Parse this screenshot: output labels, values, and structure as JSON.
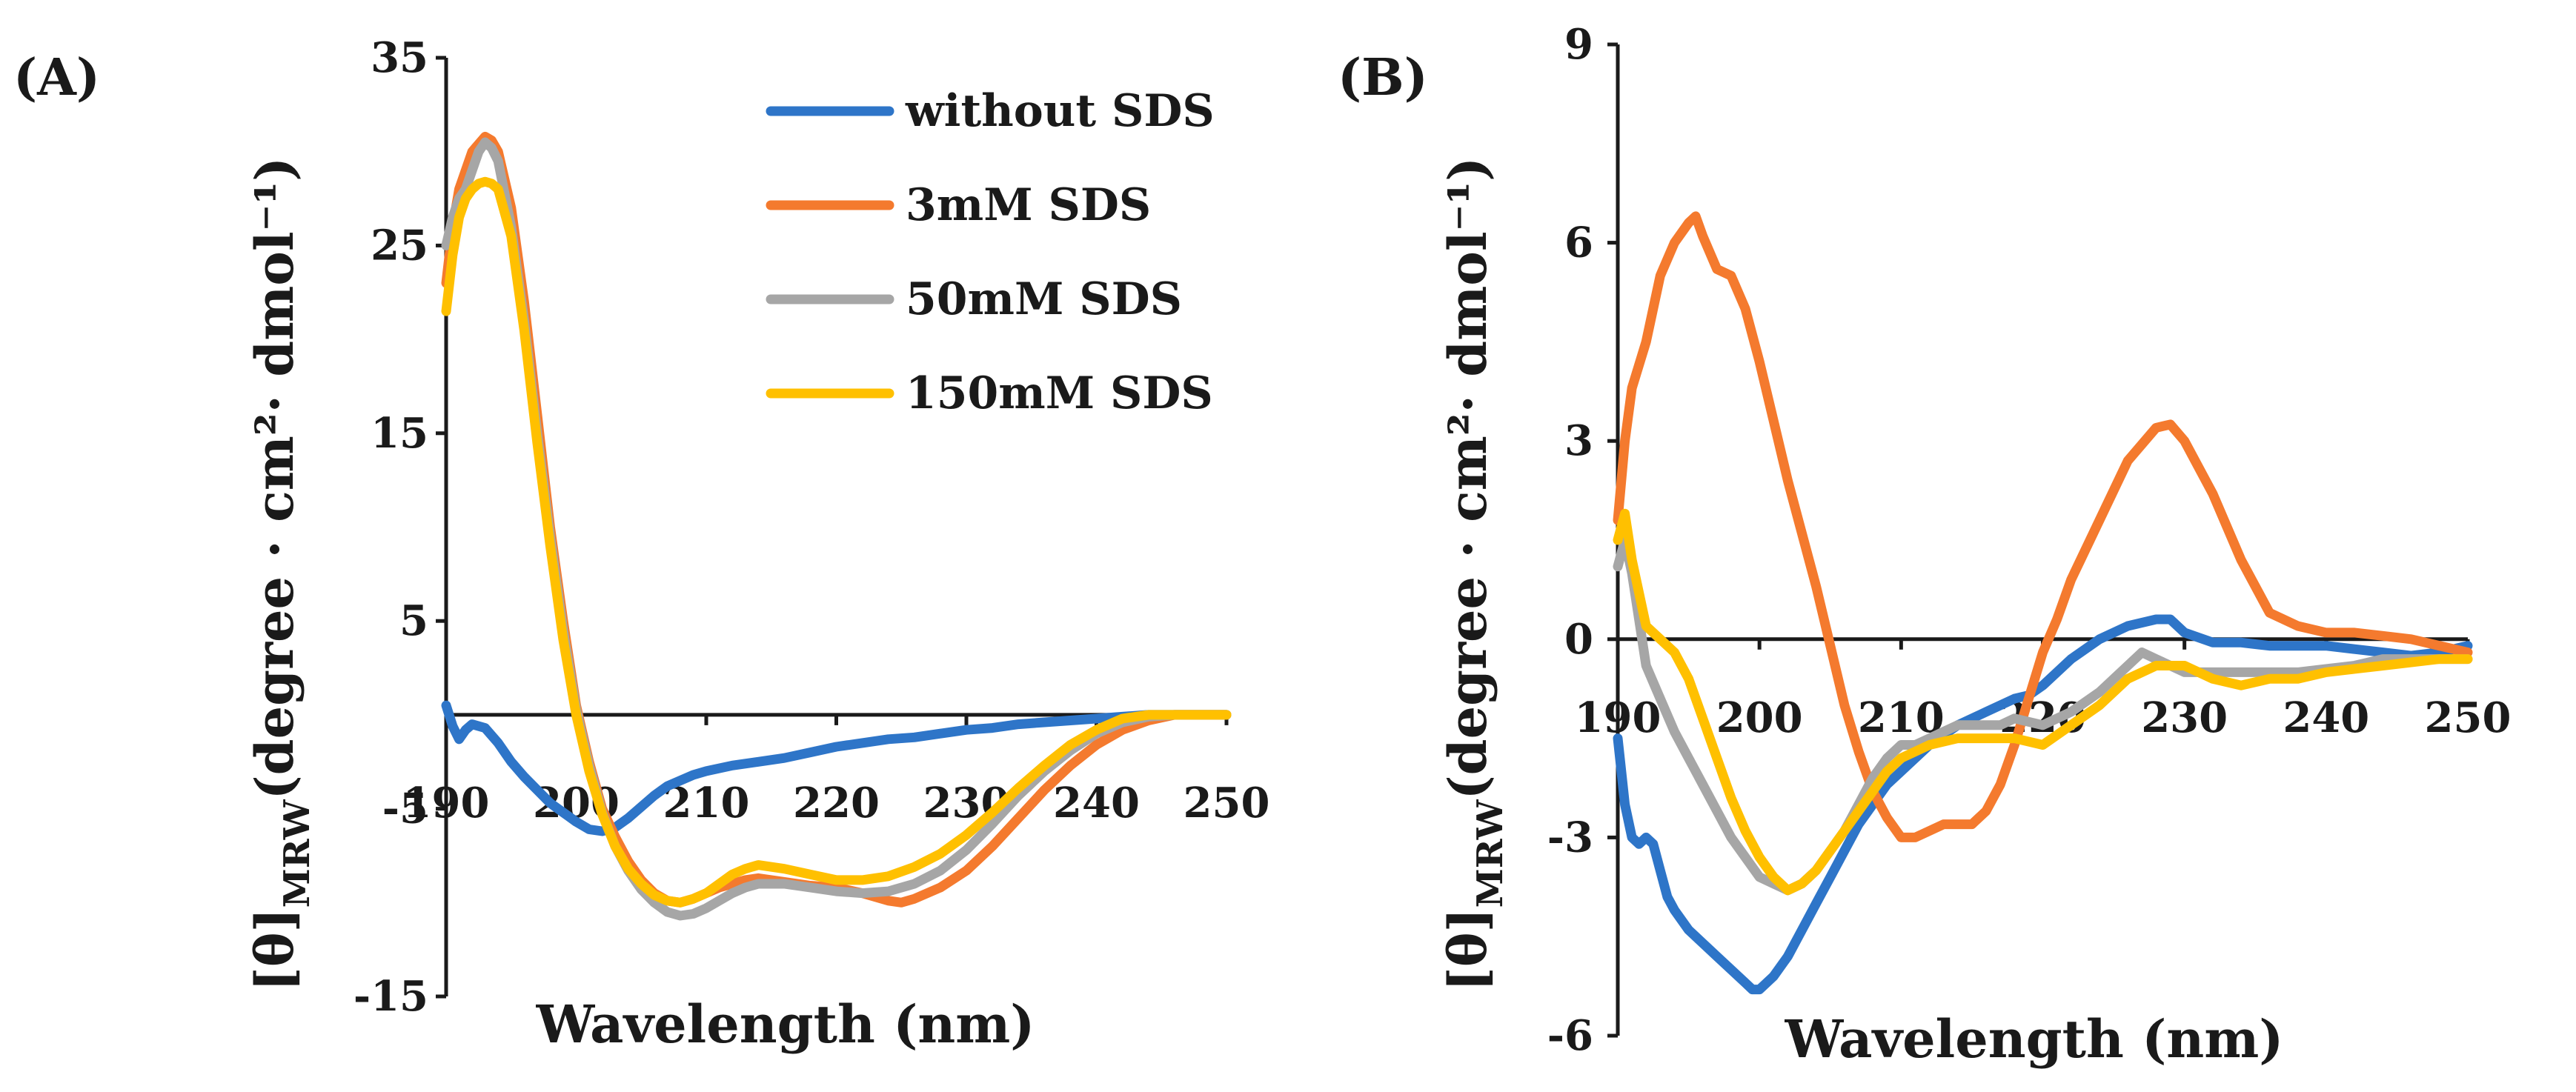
{
  "figure": {
    "colors": {
      "without": "#2E75C8",
      "sds3": "#F47A2E",
      "sds50": "#A6A6A6",
      "sds150": "#FFC000"
    }
  },
  "chart_data": [
    {
      "type": "line",
      "panel_label": "(A)",
      "title": "",
      "xlabel": "Wavelength (nm)",
      "ylabel_symbol": "[θ]",
      "ylabel_sub": "MRW",
      "ylabel_units": "(degree · cm²· dmol⁻¹)",
      "xlim": [
        190,
        250
      ],
      "ylim": [
        -15,
        35
      ],
      "x_ticks": [
        "190",
        "200",
        "210",
        "220",
        "230",
        "240",
        "250"
      ],
      "y_ticks": [
        "35",
        "25",
        "15",
        "5",
        "-5",
        "-15"
      ],
      "x_tick_values": [
        190,
        200,
        210,
        220,
        230,
        240,
        250
      ],
      "y_tick_values": [
        35,
        25,
        15,
        5,
        -5,
        -15
      ],
      "grid": false,
      "legend_position": "top-right",
      "legend": [
        "without SDS",
        "3mM SDS",
        "50mM SDS",
        "150mM SDS"
      ],
      "series": [
        {
          "name": "without SDS",
          "color": "#2E75C8",
          "x": [
            190,
            190.5,
            191,
            191.5,
            192,
            193,
            194,
            195,
            196,
            197,
            198,
            199,
            200,
            201,
            202,
            203,
            204,
            205,
            206,
            207,
            208,
            209,
            210,
            212,
            214,
            216,
            218,
            220,
            222,
            224,
            226,
            228,
            230,
            232,
            234,
            236,
            238,
            240,
            242,
            244,
            246,
            248,
            250
          ],
          "values": [
            0.5,
            -0.6,
            -1.3,
            -0.8,
            -0.5,
            -0.7,
            -1.5,
            -2.5,
            -3.3,
            -4.0,
            -4.7,
            -5.2,
            -5.7,
            -6.1,
            -6.2,
            -6.0,
            -5.5,
            -4.9,
            -4.3,
            -3.8,
            -3.5,
            -3.2,
            -3.0,
            -2.7,
            -2.5,
            -2.3,
            -2.0,
            -1.7,
            -1.5,
            -1.3,
            -1.2,
            -1.0,
            -0.8,
            -0.7,
            -0.5,
            -0.4,
            -0.3,
            -0.2,
            -0.1,
            0,
            0,
            0,
            0
          ]
        },
        {
          "name": "3mM SDS",
          "color": "#F47A2E",
          "x": [
            190,
            190.5,
            191,
            192,
            193,
            193.5,
            194,
            195,
            196,
            197,
            198,
            199,
            200,
            201,
            202,
            203,
            204,
            205,
            206,
            207,
            208,
            209,
            210,
            211,
            212,
            213,
            214,
            216,
            218,
            220,
            222,
            224,
            225,
            226,
            228,
            230,
            232,
            234,
            236,
            238,
            240,
            242,
            244,
            246,
            248,
            250
          ],
          "values": [
            23.0,
            26.0,
            28.0,
            30.0,
            30.8,
            30.6,
            30.0,
            27.0,
            22.0,
            16.0,
            10.0,
            5.0,
            0.5,
            -2.5,
            -5.0,
            -6.5,
            -7.8,
            -8.8,
            -9.5,
            -9.9,
            -10.0,
            -9.8,
            -9.5,
            -9.2,
            -9.0,
            -8.8,
            -8.7,
            -8.9,
            -9.1,
            -9.2,
            -9.5,
            -9.9,
            -10.0,
            -9.8,
            -9.2,
            -8.3,
            -7.0,
            -5.5,
            -4.0,
            -2.7,
            -1.6,
            -0.8,
            -0.3,
            0,
            0,
            0
          ]
        },
        {
          "name": "50mM SDS",
          "color": "#A6A6A6",
          "x": [
            190,
            190.5,
            191,
            191.5,
            192,
            192.5,
            193,
            193.5,
            194,
            195,
            196,
            197,
            198,
            199,
            200,
            201,
            202,
            203,
            204,
            205,
            206,
            207,
            208,
            209,
            210,
            211,
            212,
            213,
            214,
            216,
            218,
            220,
            222,
            224,
            226,
            228,
            230,
            232,
            234,
            236,
            238,
            240,
            242,
            244,
            246,
            248,
            250
          ],
          "values": [
            25.0,
            26.5,
            27.5,
            28.0,
            29.0,
            30.0,
            30.5,
            30.2,
            29.5,
            26.0,
            21.0,
            15.0,
            9.5,
            4.5,
            0.3,
            -2.7,
            -5.2,
            -7.0,
            -8.3,
            -9.3,
            -10.0,
            -10.5,
            -10.7,
            -10.6,
            -10.3,
            -9.9,
            -9.5,
            -9.2,
            -9.0,
            -9.0,
            -9.2,
            -9.4,
            -9.5,
            -9.4,
            -9.0,
            -8.3,
            -7.2,
            -5.8,
            -4.3,
            -3.0,
            -1.9,
            -1.0,
            -0.4,
            -0.1,
            0,
            0,
            0
          ]
        },
        {
          "name": "150mM SDS",
          "color": "#FFC000",
          "x": [
            190,
            190.5,
            191,
            191.5,
            192,
            192.5,
            193,
            193.5,
            194,
            195,
            196,
            197,
            198,
            199,
            200,
            201,
            202,
            203,
            204,
            205,
            206,
            207,
            208,
            209,
            210,
            211,
            212,
            213,
            214,
            216,
            218,
            220,
            222,
            224,
            226,
            228,
            230,
            232,
            234,
            236,
            238,
            240,
            242,
            244,
            246,
            248,
            250
          ],
          "values": [
            21.5,
            24.5,
            26.5,
            27.5,
            28.0,
            28.3,
            28.4,
            28.3,
            28.0,
            25.5,
            20.5,
            14.5,
            9.0,
            4.0,
            0.0,
            -3.0,
            -5.3,
            -7.0,
            -8.2,
            -9.0,
            -9.6,
            -9.9,
            -10.0,
            -9.8,
            -9.5,
            -9.0,
            -8.5,
            -8.2,
            -8.0,
            -8.2,
            -8.5,
            -8.8,
            -8.8,
            -8.6,
            -8.1,
            -7.4,
            -6.4,
            -5.2,
            -3.9,
            -2.7,
            -1.6,
            -0.8,
            -0.2,
            0,
            0,
            0,
            0
          ]
        }
      ]
    },
    {
      "type": "line",
      "panel_label": "(B)",
      "title": "",
      "xlabel": "Wavelength (nm)",
      "ylabel_symbol": "[θ]",
      "ylabel_sub": "MRW",
      "ylabel_units": "(degree · cm²· dmol⁻¹)",
      "xlim": [
        190,
        250
      ],
      "ylim": [
        -6,
        9
      ],
      "x_ticks": [
        "190",
        "200",
        "210",
        "220",
        "230",
        "240",
        "250"
      ],
      "y_ticks": [
        "9",
        "6",
        "3",
        "0",
        "-3",
        "-6"
      ],
      "x_tick_values": [
        190,
        200,
        210,
        220,
        230,
        240,
        250
      ],
      "y_tick_values": [
        9,
        6,
        3,
        0,
        -3,
        -6
      ],
      "grid": false,
      "legend_position": "none",
      "series": [
        {
          "name": "without SDS",
          "color": "#2E75C8",
          "x": [
            190,
            190.5,
            191,
            191.5,
            192,
            192.5,
            193,
            193.5,
            194,
            195,
            196,
            197,
            198,
            199,
            199.5,
            200,
            201,
            202,
            203,
            204,
            205,
            206,
            207,
            208,
            209,
            210,
            212,
            214,
            216,
            218,
            219,
            220,
            222,
            224,
            226,
            228,
            229,
            230,
            232,
            234,
            236,
            238,
            240,
            242,
            244,
            246,
            248,
            250
          ],
          "values": [
            -1.5,
            -2.5,
            -3.0,
            -3.1,
            -3.0,
            -3.1,
            -3.5,
            -3.9,
            -4.1,
            -4.4,
            -4.6,
            -4.8,
            -5.0,
            -5.2,
            -5.3,
            -5.3,
            -5.1,
            -4.8,
            -4.4,
            -4.0,
            -3.6,
            -3.2,
            -2.8,
            -2.5,
            -2.2,
            -2.0,
            -1.6,
            -1.3,
            -1.1,
            -0.9,
            -0.85,
            -0.7,
            -0.3,
            0.0,
            0.2,
            0.3,
            0.3,
            0.1,
            -0.05,
            -0.05,
            -0.1,
            -0.1,
            -0.1,
            -0.15,
            -0.2,
            -0.25,
            -0.2,
            -0.1
          ]
        },
        {
          "name": "3mM SDS",
          "color": "#F47A2E",
          "x": [
            190,
            190.5,
            191,
            192,
            193,
            194,
            195,
            195.5,
            196,
            197,
            198,
            199,
            200,
            201,
            202,
            203,
            204,
            205,
            206,
            207,
            208,
            209,
            210,
            211,
            212,
            213,
            214,
            215,
            216,
            217,
            218,
            219,
            220,
            221,
            222,
            224,
            226,
            228,
            229,
            230,
            232,
            234,
            236,
            238,
            240,
            242,
            244,
            246,
            248,
            250
          ],
          "values": [
            1.8,
            3.0,
            3.8,
            4.5,
            5.5,
            6.0,
            6.3,
            6.4,
            6.1,
            5.6,
            5.5,
            5.0,
            4.2,
            3.3,
            2.4,
            1.6,
            0.8,
            -0.1,
            -1.0,
            -1.7,
            -2.3,
            -2.7,
            -3.0,
            -3.0,
            -2.9,
            -2.8,
            -2.8,
            -2.8,
            -2.6,
            -2.2,
            -1.6,
            -0.9,
            -0.2,
            0.3,
            0.9,
            1.8,
            2.7,
            3.2,
            3.25,
            3.0,
            2.2,
            1.2,
            0.4,
            0.2,
            0.1,
            0.1,
            0.05,
            0.0,
            -0.1,
            -0.2
          ]
        },
        {
          "name": "50mM SDS",
          "color": "#A6A6A6",
          "x": [
            190,
            190.5,
            191,
            192,
            193,
            194,
            195,
            196,
            197,
            198,
            199,
            200,
            201,
            202,
            203,
            204,
            205,
            206,
            207,
            208,
            209,
            210,
            211,
            212,
            213,
            214,
            215,
            216,
            217,
            218,
            220,
            222,
            224,
            226,
            227,
            228,
            229,
            230,
            232,
            234,
            236,
            238,
            240,
            242,
            244,
            246,
            248,
            250
          ],
          "values": [
            1.1,
            1.5,
            1.0,
            -0.4,
            -0.9,
            -1.4,
            -1.8,
            -2.2,
            -2.6,
            -3.0,
            -3.3,
            -3.6,
            -3.7,
            -3.8,
            -3.7,
            -3.5,
            -3.2,
            -2.9,
            -2.5,
            -2.1,
            -1.8,
            -1.6,
            -1.6,
            -1.5,
            -1.4,
            -1.3,
            -1.3,
            -1.3,
            -1.3,
            -1.2,
            -1.3,
            -1.1,
            -0.8,
            -0.4,
            -0.2,
            -0.3,
            -0.4,
            -0.5,
            -0.5,
            -0.5,
            -0.5,
            -0.5,
            -0.45,
            -0.4,
            -0.3,
            -0.3,
            -0.3,
            -0.3
          ]
        },
        {
          "name": "150mM SDS",
          "color": "#FFC000",
          "x": [
            190,
            190.5,
            191,
            192,
            193,
            194,
            195,
            196,
            197,
            198,
            199,
            200,
            201,
            202,
            203,
            204,
            205,
            206,
            207,
            208,
            209,
            210,
            212,
            214,
            216,
            218,
            220,
            222,
            224,
            226,
            228,
            229,
            230,
            232,
            234,
            236,
            238,
            240,
            242,
            244,
            246,
            248,
            250
          ],
          "values": [
            1.5,
            1.9,
            1.2,
            0.2,
            0.0,
            -0.2,
            -0.6,
            -1.2,
            -1.8,
            -2.4,
            -2.9,
            -3.3,
            -3.6,
            -3.8,
            -3.7,
            -3.5,
            -3.2,
            -2.9,
            -2.6,
            -2.3,
            -2.0,
            -1.8,
            -1.6,
            -1.5,
            -1.5,
            -1.5,
            -1.6,
            -1.3,
            -1.0,
            -0.6,
            -0.4,
            -0.4,
            -0.4,
            -0.6,
            -0.7,
            -0.6,
            -0.6,
            -0.5,
            -0.45,
            -0.4,
            -0.35,
            -0.3,
            -0.3
          ]
        }
      ]
    }
  ]
}
